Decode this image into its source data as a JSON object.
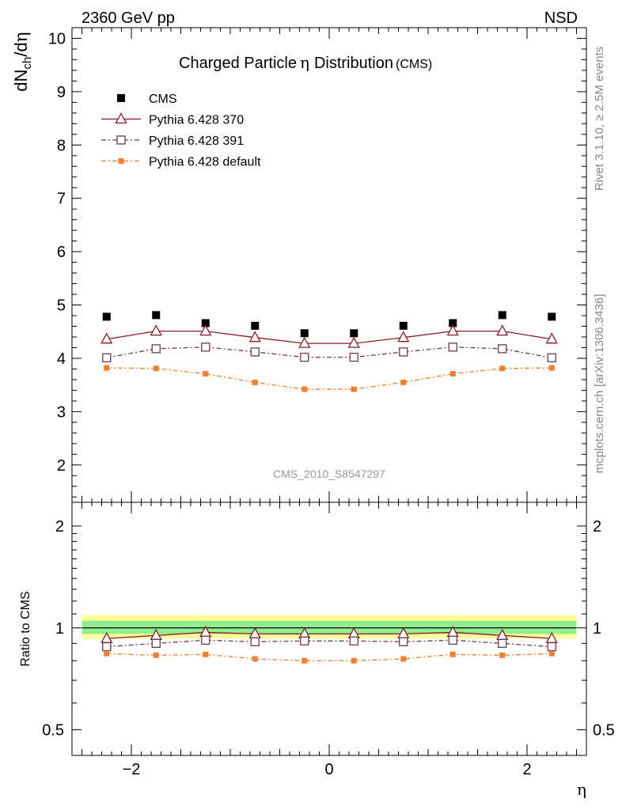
{
  "header": {
    "energy_label": "2360 GeV pp",
    "process_label": "NSD"
  },
  "side_labels": {
    "rivet": "Rivet 3.1.10, ≥ 2.5M events",
    "source": "mcplots.cern.ch [arXiv:1306.3436]"
  },
  "colors": {
    "cms": "#000000",
    "p370": "#8b1a2b",
    "p391": "#6b3a4e",
    "pdefault": "#f07f2f",
    "band_yellow": "#ffff99",
    "band_green": "#90ee90"
  },
  "chart_data": [
    {
      "type": "scatter",
      "title": "Charged Particle",
      "title_symbol": "η",
      "title_rest": "Distribution",
      "title_tag": "(CMS)",
      "watermark": "CMS_2010_S8547297",
      "ylabel": "dN_ch/dη",
      "ylim": [
        1.3,
        10.2
      ],
      "xlim": [
        -2.6,
        2.6
      ],
      "yticks": [
        2,
        3,
        4,
        5,
        6,
        7,
        8,
        9,
        10
      ],
      "x": [
        -2.25,
        -1.75,
        -1.25,
        -0.75,
        -0.25,
        0.25,
        0.75,
        1.25,
        1.75,
        2.25
      ],
      "legend_position": "top-left",
      "series": [
        {
          "name": "CMS",
          "key": "cms",
          "marker": "filled-square",
          "line": "none",
          "values": [
            4.78,
            4.81,
            4.66,
            4.61,
            4.47,
            4.47,
            4.61,
            4.66,
            4.81,
            4.78
          ]
        },
        {
          "name": "Pythia 6.428 370",
          "key": "p370",
          "marker": "open-triangle",
          "line": "solid",
          "values": [
            4.36,
            4.51,
            4.51,
            4.39,
            4.28,
            4.28,
            4.39,
            4.51,
            4.51,
            4.36
          ]
        },
        {
          "name": "Pythia 6.428 391",
          "key": "p391",
          "marker": "open-square",
          "line": "dashdot",
          "values": [
            4.01,
            4.18,
            4.21,
            4.12,
            4.02,
            4.02,
            4.12,
            4.21,
            4.18,
            4.01
          ]
        },
        {
          "name": "Pythia 6.428 default",
          "key": "pdefault",
          "marker": "filled-small-square",
          "line": "dashdot",
          "values": [
            3.82,
            3.81,
            3.71,
            3.55,
            3.42,
            3.42,
            3.55,
            3.71,
            3.81,
            3.82
          ]
        }
      ]
    },
    {
      "type": "scatter",
      "ylabel": "Ratio to CMS",
      "xlabel": "η",
      "ylim": [
        0.42,
        2.35
      ],
      "xlim": [
        -2.6,
        2.6
      ],
      "yscale": "log",
      "yticks": [
        0.5,
        1,
        2
      ],
      "ytick_labels": [
        "0.5",
        "1",
        "2"
      ],
      "xticks": [
        -2,
        0,
        2
      ],
      "xtick_labels": [
        "−2",
        "0",
        "2"
      ],
      "x": [
        -2.25,
        -1.75,
        -1.25,
        -0.75,
        -0.25,
        0.25,
        0.75,
        1.25,
        1.75,
        2.25
      ],
      "reference_line": 1,
      "band_outer": [
        0.93,
        1.09
      ],
      "band_inner": [
        0.96,
        1.05
      ],
      "series": [
        {
          "name": "Pythia 6.428 370",
          "key": "p370",
          "values": [
            0.93,
            0.95,
            0.97,
            0.96,
            0.96,
            0.96,
            0.96,
            0.97,
            0.95,
            0.93
          ]
        },
        {
          "name": "Pythia 6.428 391",
          "key": "p391",
          "values": [
            0.88,
            0.9,
            0.92,
            0.91,
            0.915,
            0.915,
            0.91,
            0.92,
            0.9,
            0.88
          ]
        },
        {
          "name": "Pythia 6.428 default",
          "key": "pdefault",
          "values": [
            0.84,
            0.83,
            0.835,
            0.81,
            0.8,
            0.8,
            0.81,
            0.835,
            0.83,
            0.84
          ]
        }
      ]
    }
  ]
}
